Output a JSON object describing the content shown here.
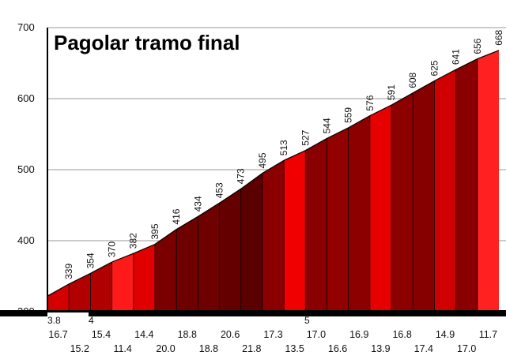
{
  "chart_data": {
    "type": "area",
    "title": "Pagolar tramo final",
    "ylim": [
      300,
      700
    ],
    "yticks": [
      "300",
      "400",
      "500",
      "600",
      "700"
    ],
    "grid": true,
    "km_labels": [
      "3.8",
      "4",
      "5"
    ],
    "elevation_labels": [
      "339",
      "354",
      "370",
      "382",
      "395",
      "416",
      "434",
      "453",
      "473",
      "495",
      "513",
      "527",
      "544",
      "559",
      "576",
      "591",
      "608",
      "625",
      "641",
      "656",
      "668"
    ],
    "elevations": [
      322,
      339,
      354,
      370,
      382,
      395,
      416,
      434,
      453,
      473,
      495,
      513,
      527,
      544,
      559,
      576,
      591,
      608,
      625,
      641,
      656,
      668
    ],
    "segments": [
      {
        "grade": "16.7",
        "color": "#d40000"
      },
      {
        "grade": "15.2",
        "color": "#b00000"
      },
      {
        "grade": "15.4",
        "color": "#b00000"
      },
      {
        "grade": "11.4",
        "color": "#ff1a1a"
      },
      {
        "grade": "14.4",
        "color": "#e00000"
      },
      {
        "grade": "20.0",
        "color": "#7a0000"
      },
      {
        "grade": "18.8",
        "color": "#6e0000"
      },
      {
        "grade": "18.8",
        "color": "#6e0000"
      },
      {
        "grade": "20.6",
        "color": "#650000"
      },
      {
        "grade": "21.8",
        "color": "#5a0000"
      },
      {
        "grade": "17.3",
        "color": "#8a0000"
      },
      {
        "grade": "13.5",
        "color": "#f00000"
      },
      {
        "grade": "17.0",
        "color": "#8a0000"
      },
      {
        "grade": "16.6",
        "color": "#920000"
      },
      {
        "grade": "16.9",
        "color": "#8c0000"
      },
      {
        "grade": "13.9",
        "color": "#e60000"
      },
      {
        "grade": "16.8",
        "color": "#8c0000"
      },
      {
        "grade": "17.4",
        "color": "#870000"
      },
      {
        "grade": "14.9",
        "color": "#d00000"
      },
      {
        "grade": "17.0",
        "color": "#8a0000"
      },
      {
        "grade": "11.7",
        "color": "#ff2020"
      }
    ]
  }
}
